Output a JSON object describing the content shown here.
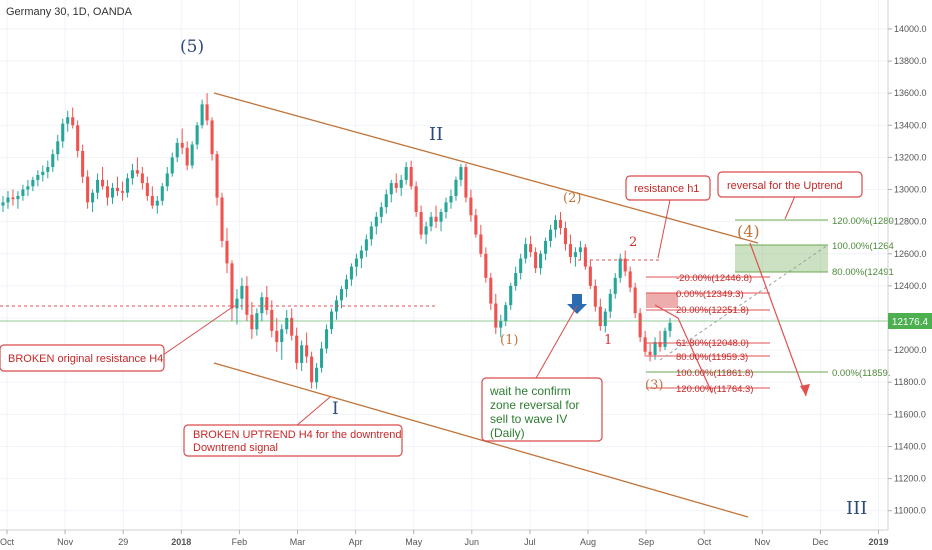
{
  "header": {
    "title": "Germany 30, 1D, OANDA"
  },
  "colors": {
    "up": "#26a69a",
    "down": "#ef5350",
    "trend": "#c0753c",
    "fibRed": "#e14f4f",
    "fibGreen": "#6aa84f",
    "wave": "#2b4a7a",
    "boxRed": "#d94a4a",
    "current": "#4caf50"
  },
  "chart_data": {
    "type": "candlestick",
    "title": "Germany 30, 1D, OANDA",
    "ylim": [
      10900,
      14150
    ],
    "y_ticks": [
      "14000.0",
      "13800.0",
      "13600.0",
      "13400.0",
      "13200.0",
      "13000.0",
      "12800.0",
      "12600.0",
      "12400.0",
      "12200.0",
      "12000.0",
      "11800.0",
      "11600.0",
      "11400.0",
      "11200.0",
      "11000.0"
    ],
    "x_ticks": [
      "Oct",
      "Nov",
      "29",
      "2018",
      "Feb",
      "Mar",
      "Apr",
      "May",
      "Jun",
      "Jul",
      "Aug",
      "Sep",
      "Oct",
      "Nov",
      "Dec",
      "2019"
    ],
    "current_price": "12176.4",
    "waves": {
      "w5": "(5)",
      "wII": "II",
      "wI": "I",
      "wIII": "III",
      "w2p": "(2)",
      "w1p": "(1)",
      "w3p": "(3)",
      "w4p": "(4)",
      "w2": "2",
      "w1": "1"
    },
    "fib_red": [
      {
        "label": "-20.00%(12446.8)"
      },
      {
        "label": "0.00%(12349.3)"
      },
      {
        "label": "20.00%(12251.8)"
      },
      {
        "label": "61.80%(12048.0)"
      },
      {
        "label": "80.00%(11959.3)"
      },
      {
        "label": "100.00%(11861.8)"
      },
      {
        "label": "120.00%(11764.3)"
      }
    ],
    "fib_green": [
      {
        "label": "120.00%(1280"
      },
      {
        "label": "100.00%(1264"
      },
      {
        "label": "80.00%(12491"
      },
      {
        "label": "0.00%(11859."
      }
    ],
    "annotations": {
      "broken_resistance": "BROKEN original resistance H4",
      "broken_uptrend_1": "BROKEN UPTREND H4 for the downtrend",
      "broken_uptrend_2": "Downtrend signal",
      "wait_1": "wait he confirm",
      "wait_2": "zone reversal for",
      "wait_3": "sell to wave IV",
      "wait_4": "(Daily)",
      "resistance_h1": "resistance h1",
      "reversal": "reversal for the Uptrend"
    },
    "candles": [
      [
        12900,
        12960,
        12860,
        12920
      ],
      [
        12920,
        12990,
        12880,
        12950
      ],
      [
        12950,
        13000,
        12900,
        12940
      ],
      [
        12940,
        12990,
        12880,
        12960
      ],
      [
        12960,
        13030,
        12930,
        13000
      ],
      [
        13000,
        13060,
        12960,
        13020
      ],
      [
        13020,
        13080,
        12990,
        13060
      ],
      [
        13060,
        13120,
        13020,
        13090
      ],
      [
        13090,
        13150,
        13050,
        13110
      ],
      [
        13110,
        13180,
        13070,
        13140
      ],
      [
        13140,
        13250,
        13110,
        13220
      ],
      [
        13220,
        13340,
        13180,
        13300
      ],
      [
        13300,
        13440,
        13260,
        13410
      ],
      [
        13410,
        13490,
        13360,
        13450
      ],
      [
        13450,
        13510,
        13380,
        13400
      ],
      [
        13400,
        13430,
        13200,
        13240
      ],
      [
        13240,
        13280,
        13040,
        13080
      ],
      [
        13080,
        13120,
        12880,
        12920
      ],
      [
        12920,
        13000,
        12860,
        12980
      ],
      [
        12980,
        13100,
        12940,
        13060
      ],
      [
        13060,
        13140,
        13000,
        13020
      ],
      [
        13020,
        13060,
        12900,
        12950
      ],
      [
        12950,
        13040,
        12910,
        13010
      ],
      [
        13010,
        13080,
        12960,
        12990
      ],
      [
        12990,
        13050,
        12930,
        12980
      ],
      [
        12980,
        13100,
        12950,
        13070
      ],
      [
        13070,
        13160,
        13030,
        13120
      ],
      [
        13120,
        13200,
        13080,
        13100
      ],
      [
        13100,
        13140,
        13000,
        13040
      ],
      [
        13040,
        13080,
        12930,
        12960
      ],
      [
        12960,
        13020,
        12880,
        12900
      ],
      [
        12900,
        12960,
        12850,
        12930
      ],
      [
        12930,
        13040,
        12900,
        13020
      ],
      [
        13020,
        13140,
        12990,
        13100
      ],
      [
        13100,
        13230,
        13080,
        13200
      ],
      [
        13200,
        13320,
        13170,
        13290
      ],
      [
        13290,
        13380,
        13220,
        13260
      ],
      [
        13260,
        13300,
        13120,
        13150
      ],
      [
        13150,
        13300,
        13130,
        13280
      ],
      [
        13280,
        13420,
        13250,
        13400
      ],
      [
        13400,
        13560,
        13380,
        13530
      ],
      [
        13530,
        13600,
        13400,
        13430
      ],
      [
        13430,
        13450,
        13180,
        13220
      ],
      [
        13220,
        13240,
        12900,
        12950
      ],
      [
        12950,
        12980,
        12640,
        12680
      ],
      [
        12680,
        12760,
        12480,
        12540
      ],
      [
        12540,
        12560,
        12180,
        12260
      ],
      [
        12260,
        12380,
        12160,
        12320
      ],
      [
        12320,
        12450,
        12250,
        12400
      ],
      [
        12400,
        12460,
        12180,
        12220
      ],
      [
        12220,
        12300,
        12070,
        12130
      ],
      [
        12130,
        12260,
        12090,
        12230
      ],
      [
        12230,
        12360,
        12180,
        12330
      ],
      [
        12330,
        12400,
        12220,
        12250
      ],
      [
        12250,
        12310,
        12080,
        12120
      ],
      [
        12120,
        12200,
        11990,
        12050
      ],
      [
        12050,
        12160,
        11940,
        12130
      ],
      [
        12130,
        12250,
        12100,
        12200
      ],
      [
        12200,
        12260,
        12060,
        12090
      ],
      [
        12090,
        12140,
        11880,
        11920
      ],
      [
        11920,
        12060,
        11870,
        12030
      ],
      [
        12030,
        12110,
        11920,
        11960
      ],
      [
        11960,
        11990,
        11760,
        11800
      ],
      [
        11800,
        11920,
        11760,
        11890
      ],
      [
        11890,
        12050,
        11860,
        12010
      ],
      [
        12010,
        12160,
        11980,
        12130
      ],
      [
        12130,
        12260,
        12100,
        12240
      ],
      [
        12240,
        12340,
        12190,
        12310
      ],
      [
        12310,
        12400,
        12260,
        12380
      ],
      [
        12380,
        12470,
        12330,
        12440
      ],
      [
        12440,
        12540,
        12400,
        12520
      ],
      [
        12520,
        12600,
        12460,
        12570
      ],
      [
        12570,
        12650,
        12510,
        12620
      ],
      [
        12620,
        12720,
        12580,
        12690
      ],
      [
        12690,
        12800,
        12650,
        12770
      ],
      [
        12770,
        12860,
        12720,
        12830
      ],
      [
        12830,
        12920,
        12790,
        12890
      ],
      [
        12890,
        13000,
        12850,
        12970
      ],
      [
        12970,
        13060,
        12920,
        13040
      ],
      [
        13040,
        13100,
        12980,
        13010
      ],
      [
        13010,
        13090,
        12960,
        13060
      ],
      [
        13060,
        13170,
        13030,
        13140
      ],
      [
        13140,
        13180,
        13000,
        13020
      ],
      [
        13020,
        13050,
        12830,
        12860
      ],
      [
        12860,
        12900,
        12690,
        12720
      ],
      [
        12720,
        12800,
        12660,
        12770
      ],
      [
        12770,
        12860,
        12740,
        12830
      ],
      [
        12830,
        12900,
        12760,
        12800
      ],
      [
        12800,
        12880,
        12740,
        12860
      ],
      [
        12860,
        12950,
        12820,
        12920
      ],
      [
        12920,
        13000,
        12880,
        12960
      ],
      [
        12960,
        13080,
        12930,
        13060
      ],
      [
        13060,
        13160,
        13020,
        13140
      ],
      [
        13140,
        13160,
        12920,
        12950
      ],
      [
        12950,
        13000,
        12800,
        12840
      ],
      [
        12840,
        12880,
        12700,
        12720
      ],
      [
        12720,
        12780,
        12580,
        12600
      ],
      [
        12600,
        12640,
        12420,
        12450
      ],
      [
        12450,
        12480,
        12250,
        12290
      ],
      [
        12290,
        12350,
        12100,
        12140
      ],
      [
        12140,
        12220,
        12080,
        12180
      ],
      [
        12180,
        12300,
        12150,
        12280
      ],
      [
        12280,
        12420,
        12250,
        12400
      ],
      [
        12400,
        12520,
        12370,
        12480
      ],
      [
        12480,
        12600,
        12440,
        12570
      ],
      [
        12570,
        12700,
        12540,
        12660
      ],
      [
        12660,
        12710,
        12580,
        12610
      ],
      [
        12610,
        12640,
        12480,
        12510
      ],
      [
        12510,
        12620,
        12470,
        12600
      ],
      [
        12600,
        12700,
        12560,
        12680
      ],
      [
        12680,
        12780,
        12640,
        12750
      ],
      [
        12750,
        12840,
        12700,
        12810
      ],
      [
        12810,
        12860,
        12720,
        12760
      ],
      [
        12760,
        12800,
        12620,
        12660
      ],
      [
        12660,
        12720,
        12540,
        12580
      ],
      [
        12580,
        12640,
        12520,
        12610
      ],
      [
        12610,
        12680,
        12560,
        12640
      ],
      [
        12640,
        12660,
        12500,
        12520
      ],
      [
        12520,
        12560,
        12380,
        12400
      ],
      [
        12400,
        12440,
        12240,
        12270
      ],
      [
        12270,
        12320,
        12120,
        12150
      ],
      [
        12150,
        12260,
        12110,
        12240
      ],
      [
        12240,
        12380,
        12200,
        12350
      ],
      [
        12350,
        12480,
        12320,
        12450
      ],
      [
        12450,
        12600,
        12420,
        12570
      ],
      [
        12570,
        12620,
        12460,
        12490
      ],
      [
        12490,
        12520,
        12360,
        12390
      ],
      [
        12390,
        12420,
        12200,
        12230
      ],
      [
        12230,
        12260,
        12050,
        12080
      ],
      [
        12080,
        12120,
        11960,
        11990
      ],
      [
        11990,
        12040,
        11930,
        11970
      ],
      [
        11970,
        12080,
        11940,
        12050
      ],
      [
        12050,
        12120,
        11990,
        12020
      ],
      [
        12020,
        12140,
        12000,
        12120
      ],
      [
        12120,
        12200,
        12080,
        12170
      ]
    ]
  }
}
